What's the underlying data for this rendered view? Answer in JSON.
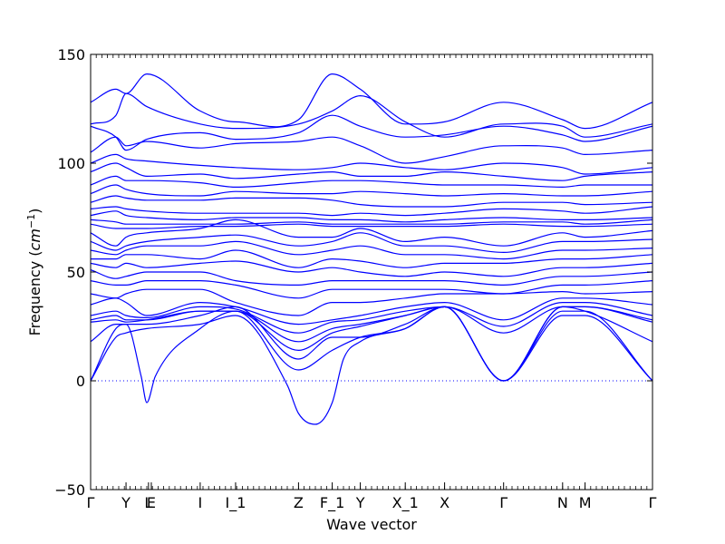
{
  "chart_data": {
    "type": "line",
    "title": "",
    "xlabel": "Wave vector",
    "ylabel": "Frequency",
    "ylabel_unit": "cm",
    "ylabel_unit_exp": "−1",
    "ylim": [
      -50,
      150
    ],
    "yticks": [
      -50,
      0,
      50,
      100,
      150
    ],
    "ytick_labels": [
      "−50",
      "0",
      "50",
      "100",
      "150"
    ],
    "grid": false,
    "legend": "none",
    "line_color": "#0000ff",
    "zero_line_color": "#0000ff",
    "x_range": [
      0,
      10
    ],
    "high_symmetry_points": [
      {
        "label": "Γ",
        "x": 0
      },
      {
        "label": "Y",
        "x": 0.63
      },
      {
        "label": "L",
        "x": 1.03
      },
      {
        "label": "E",
        "x": 1.08
      },
      {
        "label": "I",
        "x": 1.95
      },
      {
        "label": "I_1",
        "x": 2.58
      },
      {
        "label": "Z",
        "x": 3.7
      },
      {
        "label": "F_1",
        "x": 4.3
      },
      {
        "label": "Y",
        "x": 4.8
      },
      {
        "label": "X_1",
        "x": 5.6
      },
      {
        "label": "X",
        "x": 6.3
      },
      {
        "label": "Γ",
        "x": 7.35
      },
      {
        "label": "N",
        "x": 8.4
      },
      {
        "label": "M",
        "x": 8.8
      },
      {
        "label": "Γ",
        "x": 10
      }
    ],
    "series": [
      {
        "x": [
          0,
          0.45,
          0.63,
          1.0,
          1.95,
          2.58,
          3.7,
          4.3,
          4.8,
          5.6,
          6.3,
          7.35,
          8.4,
          8.8,
          10
        ],
        "y": [
          128,
          134,
          132,
          141,
          124,
          119,
          120,
          141,
          134,
          118,
          119,
          128,
          120,
          116,
          128
        ]
      },
      {
        "x": [
          0,
          0.45,
          0.63,
          1.0,
          1.95,
          2.58,
          3.7,
          4.3,
          4.8,
          5.6,
          6.3,
          7.35,
          8.4,
          8.8,
          10
        ],
        "y": [
          118,
          122,
          132,
          126,
          118,
          116,
          118,
          124,
          131,
          119,
          112,
          118,
          117,
          112,
          118
        ]
      },
      {
        "x": [
          0,
          0.45,
          0.63,
          1.0,
          1.95,
          2.58,
          3.7,
          4.3,
          4.8,
          5.6,
          6.3,
          7.35,
          8.4,
          8.8,
          10
        ],
        "y": [
          117,
          112,
          106,
          111,
          114,
          111,
          114,
          122,
          117,
          112,
          113,
          117,
          113,
          110,
          117
        ]
      },
      {
        "x": [
          0,
          0.45,
          0.63,
          1.0,
          1.95,
          2.58,
          3.7,
          4.3,
          4.8,
          5.6,
          6.3,
          7.35,
          8.4,
          8.8,
          10
        ],
        "y": [
          105,
          112,
          108,
          110,
          107,
          109,
          110,
          112,
          108,
          100,
          103,
          108,
          107,
          104,
          106
        ]
      },
      {
        "x": [
          0,
          0.45,
          0.63,
          1.0,
          1.95,
          2.58,
          3.7,
          4.3,
          4.8,
          5.6,
          6.3,
          7.35,
          8.4,
          8.8,
          10
        ],
        "y": [
          100,
          104,
          102,
          101,
          99,
          98,
          97,
          98,
          100,
          98,
          97,
          100,
          98,
          95,
          98
        ]
      },
      {
        "x": [
          0,
          0.45,
          0.63,
          1.0,
          1.95,
          2.58,
          3.7,
          4.3,
          4.8,
          5.6,
          6.3,
          7.35,
          8.4,
          8.8,
          10
        ],
        "y": [
          96,
          100,
          98,
          94,
          95,
          93,
          95,
          96,
          94,
          94,
          96,
          94,
          92,
          94,
          96
        ]
      },
      {
        "x": [
          0,
          0.45,
          0.63,
          1.0,
          1.95,
          2.58,
          3.7,
          4.3,
          4.8,
          5.6,
          6.3,
          7.35,
          8.4,
          8.8,
          10
        ],
        "y": [
          90,
          94,
          92,
          92,
          91,
          89,
          91,
          92,
          92,
          91,
          90,
          90,
          89,
          90,
          90
        ]
      },
      {
        "x": [
          0,
          0.45,
          0.63,
          1.0,
          1.95,
          2.58,
          3.7,
          4.3,
          4.8,
          5.6,
          6.3,
          7.35,
          8.4,
          8.8,
          10
        ],
        "y": [
          86,
          90,
          88,
          86,
          85,
          87,
          86,
          86,
          87,
          86,
          85,
          86,
          85,
          85,
          87
        ]
      },
      {
        "x": [
          0,
          0.45,
          0.63,
          1.0,
          1.95,
          2.58,
          3.7,
          4.3,
          4.8,
          5.6,
          6.3,
          7.35,
          8.4,
          8.8,
          10
        ],
        "y": [
          82,
          85,
          84,
          83,
          83,
          84,
          84,
          83,
          81,
          80,
          80,
          82,
          82,
          81,
          82
        ]
      },
      {
        "x": [
          0,
          0.45,
          0.63,
          1.0,
          1.95,
          2.58,
          3.7,
          4.3,
          4.8,
          5.6,
          6.3,
          7.35,
          8.4,
          8.8,
          10
        ],
        "y": [
          79,
          80,
          79,
          78,
          77,
          77,
          77,
          76,
          77,
          76,
          77,
          79,
          78,
          77,
          80
        ]
      },
      {
        "x": [
          0,
          0.45,
          0.63,
          1.0,
          1.95,
          2.58,
          3.7,
          4.3,
          4.8,
          5.6,
          6.3,
          7.35,
          8.4,
          8.8,
          10
        ],
        "y": [
          76,
          78,
          76,
          75,
          74,
          75,
          75,
          74,
          74,
          73,
          74,
          75,
          74,
          74,
          75
        ]
      },
      {
        "x": [
          0,
          0.45,
          0.63,
          1.0,
          1.95,
          2.58,
          3.7,
          4.3,
          4.8,
          5.6,
          6.3,
          7.35,
          8.4,
          8.8,
          10
        ],
        "y": [
          74,
          73,
          72,
          72,
          72,
          72,
          73,
          72,
          72,
          72,
          72,
          73,
          73,
          72,
          74
        ]
      },
      {
        "x": [
          0,
          0.45,
          0.63,
          1.0,
          1.95,
          2.58,
          3.7,
          4.3,
          4.8,
          5.6,
          6.3,
          7.35,
          8.4,
          8.8,
          10
        ],
        "y": [
          72,
          70,
          70,
          70,
          71,
          71,
          72,
          71,
          71,
          71,
          71,
          72,
          71,
          71,
          72
        ]
      },
      {
        "x": [
          0,
          0.45,
          0.63,
          1.0,
          1.95,
          2.58,
          3.7,
          4.3,
          4.8,
          5.6,
          6.3,
          7.35,
          8.4,
          8.8,
          10
        ],
        "y": [
          68,
          62,
          66,
          68,
          70,
          74,
          66,
          66,
          70,
          64,
          66,
          62,
          68,
          66,
          69
        ]
      },
      {
        "x": [
          0,
          0.45,
          0.63,
          1.0,
          1.95,
          2.58,
          3.7,
          4.3,
          4.8,
          5.6,
          6.3,
          7.35,
          8.4,
          8.8,
          10
        ],
        "y": [
          64,
          60,
          62,
          64,
          66,
          67,
          62,
          64,
          68,
          62,
          62,
          59,
          64,
          64,
          65
        ]
      },
      {
        "x": [
          0,
          0.45,
          0.63,
          1.0,
          1.95,
          2.58,
          3.7,
          4.3,
          4.8,
          5.6,
          6.3,
          7.35,
          8.4,
          8.8,
          10
        ],
        "y": [
          60,
          58,
          60,
          62,
          62,
          64,
          58,
          60,
          62,
          58,
          58,
          56,
          60,
          60,
          61
        ]
      },
      {
        "x": [
          0,
          0.45,
          0.63,
          1.0,
          1.95,
          2.58,
          3.7,
          4.3,
          4.8,
          5.6,
          6.3,
          7.35,
          8.4,
          8.8,
          10
        ],
        "y": [
          56,
          56,
          58,
          58,
          56,
          60,
          52,
          56,
          55,
          52,
          54,
          54,
          56,
          56,
          58
        ]
      },
      {
        "x": [
          0,
          0.45,
          0.63,
          1.0,
          1.95,
          2.58,
          3.7,
          4.3,
          4.8,
          5.6,
          6.3,
          7.35,
          8.4,
          8.8,
          10
        ],
        "y": [
          54,
          52,
          54,
          52,
          54,
          55,
          50,
          52,
          50,
          48,
          50,
          48,
          52,
          52,
          54
        ]
      },
      {
        "x": [
          0,
          0.45,
          0.63,
          1.0,
          1.95,
          2.58,
          3.7,
          4.3,
          4.8,
          5.6,
          6.3,
          7.35,
          8.4,
          8.8,
          10
        ],
        "y": [
          51,
          47,
          48,
          50,
          50,
          46,
          44,
          46,
          46,
          46,
          46,
          44,
          48,
          48,
          50
        ]
      },
      {
        "x": [
          0,
          0.45,
          0.63,
          1.0,
          1.95,
          2.58,
          3.7,
          4.3,
          4.8,
          5.6,
          6.3,
          7.35,
          8.4,
          8.8,
          10
        ],
        "y": [
          46,
          44,
          44,
          46,
          46,
          44,
          38,
          42,
          42,
          42,
          42,
          40,
          44,
          44,
          46
        ]
      },
      {
        "x": [
          0,
          0.45,
          0.63,
          1.0,
          1.95,
          2.58,
          3.7,
          4.3,
          4.8,
          5.6,
          6.3,
          7.35,
          8.4,
          8.8,
          10
        ],
        "y": [
          40,
          38,
          40,
          42,
          42,
          36,
          30,
          36,
          36,
          38,
          40,
          40,
          41,
          40,
          41
        ]
      },
      {
        "x": [
          0,
          0.45,
          0.63,
          1.0,
          1.95,
          2.58,
          3.7,
          4.3,
          4.8,
          5.6,
          6.3,
          7.35,
          8.4,
          8.8,
          10
        ],
        "y": [
          35,
          38,
          36,
          30,
          36,
          34,
          26,
          28,
          30,
          34,
          36,
          28,
          38,
          38,
          35
        ]
      },
      {
        "x": [
          0,
          0.45,
          0.63,
          1.0,
          1.95,
          2.58,
          3.7,
          4.3,
          4.8,
          5.6,
          6.3,
          7.35,
          8.4,
          8.8,
          10
        ],
        "y": [
          30,
          32,
          30,
          29,
          34,
          33,
          22,
          27,
          28,
          32,
          34,
          25,
          36,
          36,
          30
        ]
      },
      {
        "x": [
          0,
          0.45,
          0.63,
          1.0,
          1.95,
          2.58,
          3.7,
          4.3,
          4.8,
          5.6,
          6.3,
          7.35,
          8.4,
          8.8,
          10
        ],
        "y": [
          28,
          30,
          28,
          28,
          32,
          32,
          18,
          24,
          26,
          30,
          34,
          22,
          34,
          34,
          28
        ]
      },
      {
        "x": [
          0,
          0.45,
          0.63,
          1.0,
          1.95,
          2.58,
          3.7,
          4.3,
          4.8,
          5.6,
          6.3,
          7.35,
          8.4,
          8.8,
          10
        ],
        "y": [
          27,
          28,
          27,
          28,
          32,
          32,
          14,
          22,
          25,
          30,
          34,
          0,
          34,
          34,
          27
        ]
      },
      {
        "x": [
          0,
          0.45,
          0.63,
          1.0,
          1.95,
          2.58,
          3.7,
          4.3,
          4.8,
          5.6,
          6.3,
          7.35,
          8.4,
          8.8,
          10
        ],
        "y": [
          18,
          26,
          26,
          26,
          30,
          34,
          10,
          20,
          20,
          26,
          34,
          0,
          34,
          32,
          18
        ]
      },
      {
        "x": [
          0,
          0.45,
          0.63,
          0.9,
          1.0,
          1.15,
          1.95,
          2.58,
          3.7,
          4.3,
          4.8,
          5.6,
          6.3,
          7.35,
          8.4,
          8.8,
          10
        ],
        "y": [
          0,
          24,
          26,
          2,
          -10,
          2,
          24,
          32,
          5,
          14,
          20,
          24,
          34,
          0,
          32,
          32,
          0
        ]
      },
      {
        "x": [
          0,
          0.45,
          0.63,
          1.0,
          1.95,
          2.58,
          3.5,
          3.7,
          4.0,
          4.3,
          4.5,
          4.8,
          5.6,
          6.3,
          7.35,
          8.4,
          8.8,
          10
        ],
        "y": [
          0,
          20,
          22,
          24,
          26,
          30,
          -2,
          -15,
          -20,
          -10,
          10,
          18,
          24,
          34,
          0,
          30,
          30,
          0
        ]
      }
    ]
  },
  "plot": {
    "zero_line": true
  }
}
